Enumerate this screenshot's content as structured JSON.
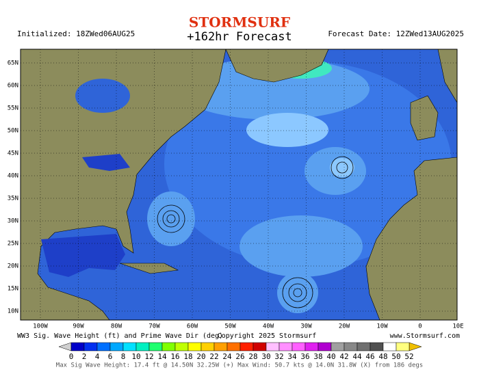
{
  "header": {
    "brand": "STORMSURF",
    "title": "+162hr Forecast",
    "initialized": "Initialized: 18ZWed06AUG25",
    "forecast_date": "Forecast Date: 12ZWed13AUG2025"
  },
  "map": {
    "lat_labels": [
      "65N",
      "60N",
      "55N",
      "50N",
      "45N",
      "40N",
      "35N",
      "30N",
      "25N",
      "20N",
      "15N",
      "10N"
    ],
    "lon_labels": [
      "100W",
      "90W",
      "80W",
      "70W",
      "60W",
      "50W",
      "40W",
      "30W",
      "20W",
      "10W",
      "0",
      "10E"
    ]
  },
  "footer": {
    "left": "WW3 Sig. Wave Height (ft) and Prime Wave Dir (deg)",
    "center": "Copyright 2025 Stormsurf",
    "right": "www.Stormsurf.com",
    "stats": "Max Sig Wave Height: 17.4 ft @ 14.50N 32.25W (+)    Max Wind: 50.7 kts @ 14.0N 31.8W (X) from 186 degs"
  },
  "colorbar": {
    "ticks": [
      0,
      2,
      4,
      6,
      8,
      10,
      12,
      14,
      16,
      18,
      20,
      22,
      24,
      26,
      28,
      30,
      32,
      34,
      36,
      38,
      40,
      42,
      44,
      46,
      48,
      50,
      52
    ],
    "colors": [
      "#0000c8",
      "#0030f0",
      "#0070ff",
      "#00a8ff",
      "#00e0ff",
      "#00f0c0",
      "#20ff70",
      "#80ff00",
      "#c0ff00",
      "#ffff00",
      "#ffd000",
      "#ffa000",
      "#ff7000",
      "#ff2000",
      "#d00000",
      "#ffc0ff",
      "#ff90ff",
      "#ff60ff",
      "#e020f0",
      "#b000d0",
      "#a0a0a0",
      "#888888",
      "#707070",
      "#505050",
      "#ffffff",
      "#ffff80"
    ]
  }
}
